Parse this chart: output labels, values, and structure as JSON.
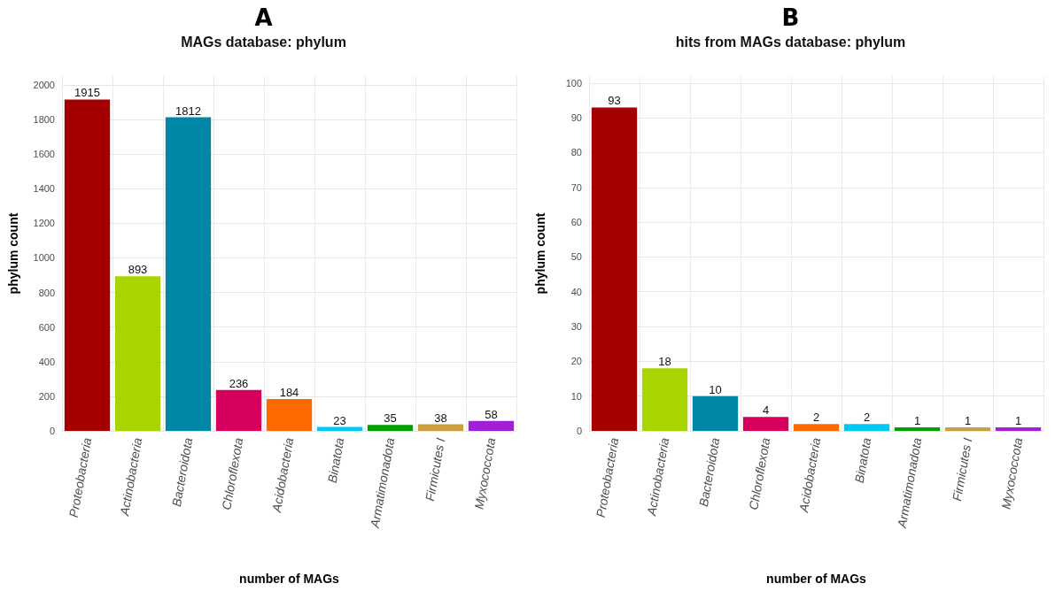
{
  "chart_data": [
    {
      "type": "bar",
      "title": "A",
      "subtitle": "MAGs database: phylum",
      "xlabel": "number of MAGs",
      "ylabel": "phylum count",
      "categories": [
        "Proteobacteria",
        "Actinobacteria",
        "Bacteroidota",
        "Chloroflexota",
        "Acidobacteria",
        "Binatota",
        "Armatimonadota",
        "Firmicutes I",
        "Myxococcota"
      ],
      "values": [
        1915,
        893,
        1812,
        236,
        184,
        23,
        35,
        38,
        58
      ],
      "colors": [
        "#a50000",
        "#a8d400",
        "#0087a8",
        "#d6005c",
        "#ff6a00",
        "#00c8f0",
        "#00a000",
        "#c8a040",
        "#a020d8"
      ],
      "ylim": [
        0,
        2050
      ],
      "yticks": [
        0,
        200,
        400,
        600,
        800,
        1000,
        1200,
        1400,
        1600,
        1800,
        2000
      ],
      "grid": true,
      "data_labels": true
    },
    {
      "type": "bar",
      "title": "B",
      "subtitle": "hits from MAGs database: phylum",
      "xlabel": "number of MAGs",
      "ylabel": "phylum count",
      "categories": [
        "Proteobacteria",
        "Actinobacteria",
        "Bacteroidota",
        "Chloroflexota",
        "Acidobacteria",
        "Binatota",
        "Armatimonadota",
        "Firmicutes I",
        "Myxococcota"
      ],
      "values": [
        93,
        18,
        10,
        4,
        2,
        2,
        1,
        1,
        1
      ],
      "colors": [
        "#a50000",
        "#a8d400",
        "#0087a8",
        "#d6005c",
        "#ff6a00",
        "#00c8f0",
        "#00a000",
        "#c8a040",
        "#a020d8"
      ],
      "ylim": [
        0,
        102
      ],
      "yticks": [
        0,
        10,
        20,
        30,
        40,
        50,
        60,
        70,
        80,
        90,
        100
      ],
      "grid": true,
      "data_labels": true
    }
  ]
}
